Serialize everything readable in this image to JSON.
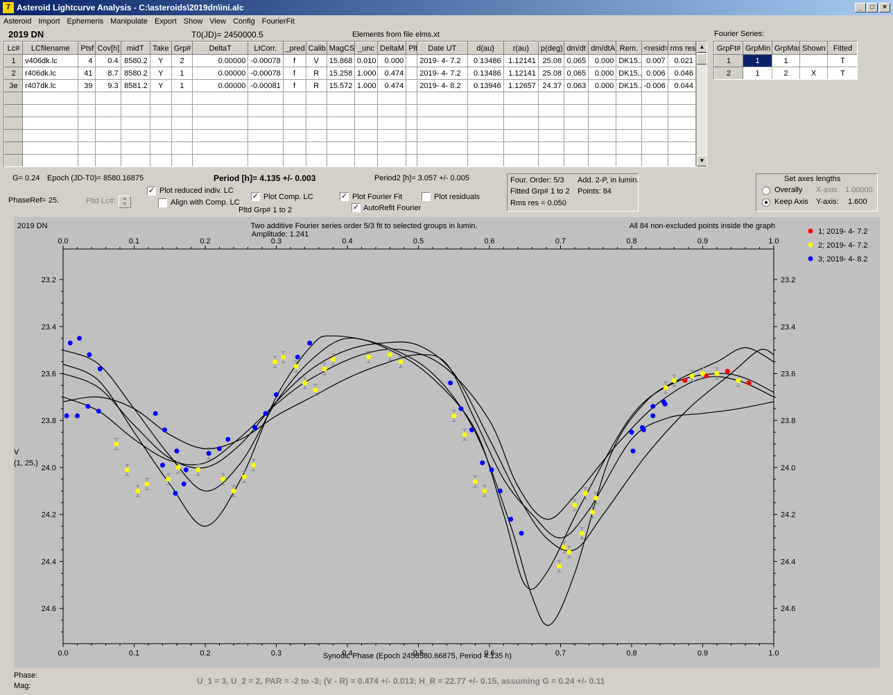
{
  "window": {
    "title": "Asteroid Lightcurve Analysis - C:\\asteroids\\2019dn\\ini.alc",
    "icon_label": "7"
  },
  "menu": [
    "Asteroid",
    "Import",
    "Ephemeris",
    "Manipulate",
    "Export",
    "Show",
    "View",
    "Config",
    "FourierFit"
  ],
  "header": {
    "asteroid": "2019 DN",
    "t0": "T0(JD)= 2450000.5",
    "elements": "Elements from file elms.xt",
    "fourier_series": "Fourier Series:"
  },
  "lc_table": {
    "columns": [
      "Lc#",
      "LCfilename",
      "Ptsf",
      "Cov[h]",
      "midT",
      "Take",
      "Grp#",
      "DeltaT",
      "LtCorr.",
      "_pred.",
      "Calib.",
      "MagCS",
      "_unc",
      "DeltaM",
      "Plt",
      "Date UT",
      "d(au)",
      "r(au)",
      "p(deg)",
      "dm/dt",
      "dm/dtA",
      "Rem.",
      "<resid>",
      "rms res"
    ],
    "rows": [
      [
        "1",
        "v406dk.lc",
        "4",
        "0.4",
        "8580.2",
        "Y",
        "2",
        "0.00000",
        "-0.00078",
        "f",
        "V",
        "15.868",
        "0.010",
        "0.000",
        "",
        "2019- 4- 7.2",
        "0.13486",
        "1.12141",
        "25.08",
        "0.065",
        "0.000",
        "DK15...",
        "0.007",
        "0.021"
      ],
      [
        "2",
        "r406dk.lc",
        "41",
        "8.7",
        "8580.2",
        "Y",
        "1",
        "0.00000",
        "-0.00078",
        "f",
        "R",
        "15.258",
        "1.000",
        "0.474",
        "",
        "2019- 4- 7.2",
        "0.13486",
        "1.12141",
        "25.08",
        "0.065",
        "0.000",
        "DK15...",
        "0.006",
        "0.046"
      ],
      [
        "3e",
        "r407dk.lc",
        "39",
        "9.3",
        "8581.2",
        "Y",
        "1",
        "0.00000",
        "-0.00081",
        "f",
        "R",
        "15.572",
        "1.000",
        "0.474",
        "",
        "2019- 4- 8.2",
        "0.13946",
        "1.12657",
        "24.37",
        "0.063",
        "0.000",
        "DK15...",
        "-0.006",
        "0.044"
      ]
    ]
  },
  "fourier_table": {
    "columns": [
      "GrpFt#",
      "GrpMin",
      "GrpMax",
      "Shown",
      "Fitted"
    ],
    "rows": [
      [
        "1",
        "1",
        "1",
        "",
        "T"
      ],
      [
        "2",
        "1",
        "2",
        "X",
        "T"
      ]
    ]
  },
  "info": {
    "g": "G= 0.24",
    "epoch": "Epoch (JD-T0)= 8580.16875",
    "period": "Period [h]= 4.135 +/- 0.003",
    "period2": "Period2 [h]= 3.057 +/- 0.005",
    "phaseref": "PhaseRef= 25.",
    "pltd_lc": "Pltd Lc#:",
    "plot_reduced": "Plot reduced indiv. LC",
    "align_comp": "Align with Comp. LC",
    "plot_comp": "Plot Comp. LC",
    "pltd_grp": "Pltd Grp#  1   to   2",
    "plot_fourier": "Plot Fourier Fit",
    "autorefit": "AutoRefit Fourier",
    "plot_residuals": "Plot residuals",
    "check": "✓"
  },
  "fourier_info": {
    "order": "Four. Order:  5/3",
    "add": "Add. 2-P, in lumin.",
    "fitted": "Fitted Grp# 1 to 2",
    "points": "Points: 84",
    "rms": "Rms res     = 0.050"
  },
  "axes_panel": {
    "title": "Set axes lengths",
    "overally": "Overally",
    "keep": "Keep Axis",
    "xaxis_label": "X-axis:",
    "xaxis_val": "1.00000",
    "yaxis_label": "Y-axis:",
    "yaxis_val": "1.600"
  },
  "plot": {
    "name": "2019 DN",
    "title": "Two additive Fourier series order 5/3 fit to selected groups in lumin.",
    "amplitude": "Amplitude: 1.241",
    "note": "All 84 non-excluded points inside the graph",
    "xlabel": "Synodic Phase (Epoch 2458580.66875, Period 4.135 h)",
    "ylabel1": "V",
    "ylabel2": "(1, 25.)",
    "legend": [
      {
        "label": "1; 2019- 4- 7.2",
        "color": "#ff0000"
      },
      {
        "label": "2; 2019- 4- 7.2",
        "color": "#ffff00"
      },
      {
        "label": "3; 2019- 4- 8.2",
        "color": "#0000ff"
      }
    ]
  },
  "chart_data": {
    "type": "scatter",
    "xlim": [
      0,
      1.0
    ],
    "ylim": [
      24.75,
      23.07
    ],
    "xticks": [
      "0.0",
      "0.1",
      "0.2",
      "0.3",
      "0.4",
      "0.5",
      "0.6",
      "0.7",
      "0.8",
      "0.9",
      "1.0"
    ],
    "yticks": [
      "23.2",
      "23.4",
      "23.6",
      "23.8",
      "24.0",
      "24.2",
      "24.4",
      "24.6"
    ],
    "series": [
      {
        "name": "1; 2019- 4- 7.2",
        "color": "#ff0000",
        "points": [
          [
            0.875,
            23.63
          ],
          [
            0.905,
            23.61
          ],
          [
            0.935,
            23.59
          ],
          [
            0.965,
            23.64
          ]
        ]
      },
      {
        "name": "2; 2019- 4- 7.2",
        "color": "#ffff00",
        "points": [
          [
            0.075,
            23.9
          ],
          [
            0.09,
            24.01
          ],
          [
            0.105,
            24.1
          ],
          [
            0.118,
            24.07
          ],
          [
            0.148,
            24.05
          ],
          [
            0.162,
            24.0
          ],
          [
            0.19,
            24.01
          ],
          [
            0.205,
            23.94
          ],
          [
            0.225,
            24.05
          ],
          [
            0.24,
            24.1
          ],
          [
            0.255,
            24.04
          ],
          [
            0.268,
            23.99
          ],
          [
            0.298,
            23.55
          ],
          [
            0.31,
            23.53
          ],
          [
            0.328,
            23.57
          ],
          [
            0.34,
            23.64
          ],
          [
            0.355,
            23.67
          ],
          [
            0.368,
            23.58
          ],
          [
            0.38,
            23.54
          ],
          [
            0.43,
            23.53
          ],
          [
            0.46,
            23.52
          ],
          [
            0.475,
            23.55
          ],
          [
            0.55,
            23.78
          ],
          [
            0.565,
            23.86
          ],
          [
            0.58,
            24.06
          ],
          [
            0.593,
            24.1
          ],
          [
            0.698,
            24.42
          ],
          [
            0.705,
            24.34
          ],
          [
            0.712,
            24.36
          ],
          [
            0.72,
            24.16
          ],
          [
            0.73,
            24.28
          ],
          [
            0.735,
            24.11
          ],
          [
            0.745,
            24.19
          ],
          [
            0.75,
            24.13
          ],
          [
            0.848,
            23.66
          ],
          [
            0.86,
            23.63
          ],
          [
            0.885,
            23.61
          ],
          [
            0.9,
            23.6
          ],
          [
            0.92,
            23.6
          ],
          [
            0.95,
            23.63
          ]
        ]
      },
      {
        "name": "3; 2019- 4- 8.2",
        "color": "#0000ff",
        "points": [
          [
            0.005,
            23.78
          ],
          [
            0.01,
            23.47
          ],
          [
            0.02,
            23.78
          ],
          [
            0.023,
            23.45
          ],
          [
            0.035,
            23.74
          ],
          [
            0.037,
            23.52
          ],
          [
            0.05,
            23.76
          ],
          [
            0.052,
            23.58
          ],
          [
            0.13,
            23.77
          ],
          [
            0.14,
            23.99
          ],
          [
            0.143,
            23.84
          ],
          [
            0.158,
            24.11
          ],
          [
            0.16,
            23.93
          ],
          [
            0.17,
            24.07
          ],
          [
            0.173,
            24.01
          ],
          [
            0.205,
            23.94
          ],
          [
            0.22,
            23.92
          ],
          [
            0.232,
            23.88
          ],
          [
            0.27,
            23.83
          ],
          [
            0.285,
            23.77
          ],
          [
            0.3,
            23.69
          ],
          [
            0.33,
            23.53
          ],
          [
            0.347,
            23.47
          ],
          [
            0.545,
            23.64
          ],
          [
            0.56,
            23.75
          ],
          [
            0.575,
            23.84
          ],
          [
            0.59,
            23.98
          ],
          [
            0.603,
            24.01
          ],
          [
            0.615,
            24.1
          ],
          [
            0.63,
            24.22
          ],
          [
            0.645,
            24.28
          ],
          [
            0.8,
            23.85
          ],
          [
            0.802,
            23.93
          ],
          [
            0.815,
            23.83
          ],
          [
            0.817,
            23.84
          ],
          [
            0.83,
            23.78
          ],
          [
            0.83,
            23.74
          ],
          [
            0.845,
            23.72
          ],
          [
            0.847,
            23.73
          ]
        ]
      }
    ]
  }
}
